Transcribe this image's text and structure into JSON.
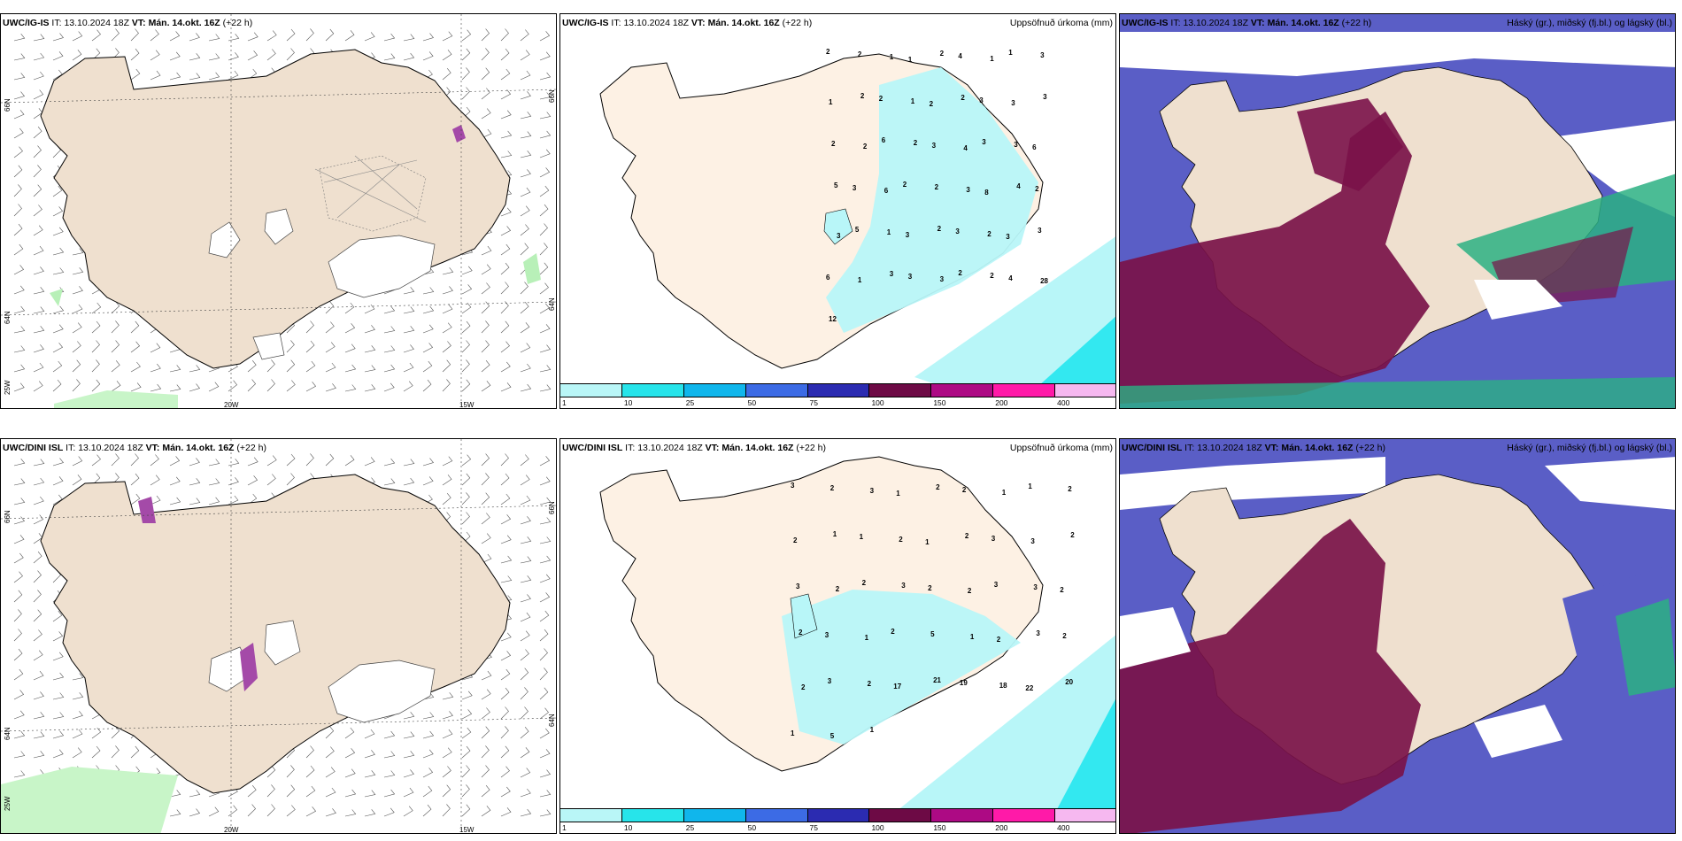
{
  "panels": {
    "top_left": {
      "model": "UWC/IG-IS",
      "it": "13.10.2024 18Z",
      "vt": "Mán. 14.okt. 16Z",
      "lead": "(+22 h)",
      "lead_wrap": "h)"
    },
    "top_mid": {
      "model": "UWC/IG-IS",
      "it": "13.10.2024 18Z",
      "vt": "Mán. 14.okt. 16Z",
      "lead": "(+22 h)",
      "right": "Uppsöfnuð úrkoma (mm)"
    },
    "top_right": {
      "model": "UWC/IG-IS",
      "it": "13.10.2024 18Z",
      "vt": "Mán. 14.okt. 16Z",
      "lead": "(+22 h)",
      "right": "Háský (gr.), miðský (fj.bl.) og lágský (bl.)"
    },
    "bottom_left": {
      "model": "UWC/DINI ISL",
      "it": "13.10.2024 18Z",
      "vt": "Mán. 14.okt. 16Z",
      "lead": "(+22 h)"
    },
    "bottom_mid": {
      "model": "UWC/DINI ISL",
      "it": "13.10.2024 18Z",
      "vt": "Mán. 14.okt. 16Z",
      "lead": "(+22 h)",
      "right": "Uppsöfnuð úrkoma (mm)"
    },
    "bottom_right": {
      "model": "UWC/DINI ISL",
      "it": "13.10.2024 18Z",
      "vt": "Mán. 14.okt. 16Z",
      "lead": "(+22 h)",
      "right": "Háský (gr.), miðský (fj.bl.) og lágský (bl.)"
    }
  },
  "labels": {
    "it_prefix": "IT:",
    "vt_prefix": "VT:",
    "lat66": "66N",
    "lat64": "64N",
    "lon25": "25W",
    "lon20": "20W",
    "lon15": "15W"
  },
  "legend": {
    "colors": [
      "#b9f6f7",
      "#27e4ea",
      "#10b6ec",
      "#3c6be5",
      "#2b2bb1",
      "#6d0a45",
      "#ad0a84",
      "#ff1aa8",
      "#f6b8f0"
    ],
    "values": [
      "1",
      "10",
      "25",
      "50",
      "75",
      "100",
      "150",
      "200",
      "400"
    ]
  },
  "precip_numbers_top": [
    "2",
    "2",
    "1",
    "1",
    "2",
    "4",
    "1",
    "1",
    "3",
    "1",
    "2",
    "2",
    "1",
    "2",
    "2",
    "3",
    "3",
    "3",
    "2",
    "2",
    "6",
    "2",
    "3",
    "4",
    "3",
    "3",
    "6",
    "5",
    "3",
    "6",
    "2",
    "2",
    "3",
    "8",
    "4",
    "2",
    "3",
    "5",
    "1",
    "3",
    "2",
    "3",
    "2",
    "3",
    "3",
    "6",
    "1",
    "3",
    "3",
    "3",
    "2",
    "2",
    "4",
    "28",
    "12"
  ],
  "precip_numbers_bottom": [
    "3",
    "2",
    "3",
    "1",
    "2",
    "2",
    "1",
    "1",
    "2",
    "2",
    "1",
    "1",
    "2",
    "1",
    "2",
    "3",
    "3",
    "2",
    "3",
    "2",
    "2",
    "3",
    "2",
    "2",
    "3",
    "3",
    "2",
    "2",
    "3",
    "1",
    "2",
    "5",
    "1",
    "2",
    "3",
    "2",
    "2",
    "3",
    "2",
    "17",
    "21",
    "19",
    "18",
    "22",
    "20",
    "1",
    "5",
    "1"
  ],
  "colors": {
    "land": "#efe0cf",
    "land_mid": "#fdf1e4",
    "snow": "#ffffff",
    "precip_light": "#b8f6f8",
    "precip_mid": "#33e8f0",
    "low_cloud": "#5a5ec6",
    "mid_cloud": "#7a1249",
    "high_cloud": "#2bb083",
    "wind": "#555555"
  }
}
